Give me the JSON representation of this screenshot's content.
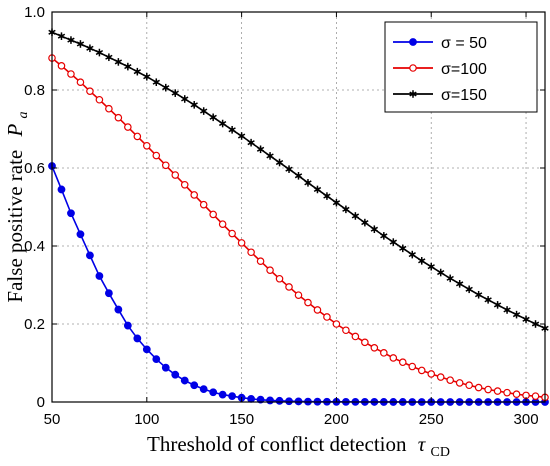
{
  "chart_data": {
    "type": "line",
    "xlabel": "Threshold of conflict detection",
    "xlabel_symbol": "τ",
    "xlabel_subscript": "CD",
    "ylabel": "False positive rate",
    "ylabel_symbol": "P",
    "ylabel_subscript": "a",
    "xlim": [
      50,
      310
    ],
    "ylim": [
      0,
      1
    ],
    "xticks": [
      50,
      100,
      150,
      200,
      250,
      300
    ],
    "yticks": [
      0,
      0.2,
      0.4,
      0.6,
      0.8,
      1
    ],
    "xtick_labels": [
      "50",
      "100",
      "150",
      "200",
      "250",
      "300"
    ],
    "ytick_labels": [
      "0",
      "0.2",
      "0.4",
      "0.6",
      "0.8",
      "1.0"
    ],
    "grid": true,
    "legend_position": "top-right",
    "x": [
      50,
      55,
      60,
      65,
      70,
      75,
      80,
      85,
      90,
      95,
      100,
      105,
      110,
      115,
      120,
      125,
      130,
      135,
      140,
      145,
      150,
      155,
      160,
      165,
      170,
      175,
      180,
      185,
      190,
      195,
      200,
      205,
      210,
      215,
      220,
      225,
      230,
      235,
      240,
      245,
      250,
      255,
      260,
      265,
      270,
      275,
      280,
      285,
      290,
      295,
      300,
      305,
      310
    ],
    "series": [
      {
        "name": "σ = 50",
        "color": "#0000e6",
        "marker": "filled-circle",
        "values": [
          0.605,
          0.545,
          0.484,
          0.43,
          0.376,
          0.323,
          0.279,
          0.237,
          0.196,
          0.163,
          0.135,
          0.11,
          0.088,
          0.07,
          0.055,
          0.043,
          0.033,
          0.025,
          0.019,
          0.015,
          0.011,
          0.008,
          0.006,
          0.004,
          0.003,
          0.002,
          0.0015,
          0.001,
          0.0008,
          0.0006,
          0.0005,
          0.0004,
          0.0003,
          0.0002,
          0.0002,
          0.0001,
          0.0001,
          0.0001,
          0,
          0,
          0,
          0,
          0,
          0,
          0,
          0,
          0,
          0,
          0,
          0,
          0,
          0,
          0
        ]
      },
      {
        "name": "σ=100",
        "color": "#e60000",
        "marker": "open-circle",
        "values": [
          0.882,
          0.862,
          0.841,
          0.82,
          0.797,
          0.775,
          0.752,
          0.729,
          0.705,
          0.681,
          0.657,
          0.632,
          0.607,
          0.582,
          0.557,
          0.531,
          0.506,
          0.481,
          0.456,
          0.432,
          0.408,
          0.384,
          0.361,
          0.338,
          0.316,
          0.295,
          0.274,
          0.255,
          0.236,
          0.218,
          0.2,
          0.184,
          0.168,
          0.153,
          0.139,
          0.126,
          0.113,
          0.102,
          0.091,
          0.081,
          0.072,
          0.064,
          0.056,
          0.049,
          0.043,
          0.037,
          0.032,
          0.028,
          0.024,
          0.02,
          0.017,
          0.015,
          0.012
        ]
      },
      {
        "name": "σ=150",
        "color": "#000000",
        "marker": "asterisk",
        "values": [
          0.948,
          0.938,
          0.928,
          0.918,
          0.907,
          0.896,
          0.884,
          0.872,
          0.86,
          0.847,
          0.834,
          0.82,
          0.806,
          0.792,
          0.777,
          0.762,
          0.746,
          0.73,
          0.714,
          0.698,
          0.682,
          0.665,
          0.648,
          0.631,
          0.614,
          0.597,
          0.58,
          0.562,
          0.545,
          0.528,
          0.511,
          0.494,
          0.477,
          0.46,
          0.443,
          0.426,
          0.41,
          0.394,
          0.378,
          0.362,
          0.347,
          0.332,
          0.317,
          0.303,
          0.289,
          0.275,
          0.262,
          0.249,
          0.236,
          0.224,
          0.212,
          0.2,
          0.189
        ]
      }
    ]
  }
}
